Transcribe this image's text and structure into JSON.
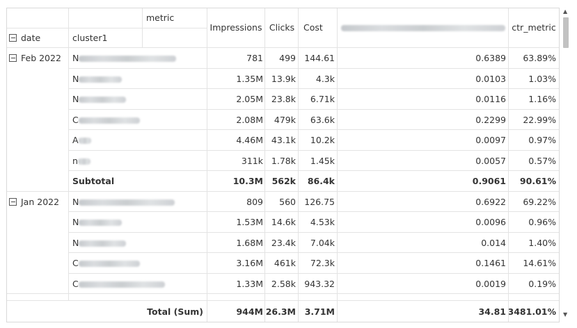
{
  "header": {
    "metric_label": "metric",
    "date_label": "date",
    "cluster_label": "cluster1",
    "columns": [
      "Impressions",
      "Clicks",
      "Cost",
      "",
      "ctr_metric"
    ]
  },
  "groups": [
    {
      "date": "Feb 2022",
      "rows": [
        {
          "cluster": "N",
          "blur": 140,
          "values": [
            "781",
            "499",
            "144.61",
            "0.6389",
            "63.89%"
          ]
        },
        {
          "cluster": "N",
          "blur": 62,
          "values": [
            "1.35M",
            "13.9k",
            "4.3k",
            "0.0103",
            "1.03%"
          ]
        },
        {
          "cluster": "N",
          "blur": 68,
          "values": [
            "2.05M",
            "23.8k",
            "6.71k",
            "0.0116",
            "1.16%"
          ]
        },
        {
          "cluster": "C",
          "blur": 88,
          "values": [
            "2.08M",
            "479k",
            "63.6k",
            "0.2299",
            "22.99%"
          ]
        },
        {
          "cluster": "A",
          "blur": 18,
          "values": [
            "4.46M",
            "43.1k",
            "10.2k",
            "0.0097",
            "0.97%"
          ]
        },
        {
          "cluster": "n",
          "blur": 18,
          "values": [
            "311k",
            "1.78k",
            "1.45k",
            "0.0057",
            "0.57%"
          ]
        }
      ],
      "subtotal_label": "Subtotal",
      "subtotal": [
        "10.3M",
        "562k",
        "86.4k",
        "0.9061",
        "90.61%"
      ]
    },
    {
      "date": "Jan 2022",
      "rows": [
        {
          "cluster": "N",
          "blur": 138,
          "values": [
            "809",
            "560",
            "126.75",
            "0.6922",
            "69.22%"
          ]
        },
        {
          "cluster": "N",
          "blur": 62,
          "values": [
            "1.53M",
            "14.6k",
            "4.53k",
            "0.0096",
            "0.96%"
          ]
        },
        {
          "cluster": "N",
          "blur": 68,
          "values": [
            "1.68M",
            "23.4k",
            "7.04k",
            "0.014",
            "1.40%"
          ]
        },
        {
          "cluster": "C",
          "blur": 88,
          "values": [
            "3.16M",
            "461k",
            "72.3k",
            "0.1461",
            "14.61%"
          ]
        },
        {
          "cluster": "C",
          "blur": 124,
          "values": [
            "1.33M",
            "2.58k",
            "943.32",
            "0.0019",
            "0.19%"
          ]
        }
      ]
    }
  ],
  "total": {
    "label": "Total (Sum)",
    "values": [
      "944M",
      "26.3M",
      "3.71M",
      "34.81",
      "3481.01%"
    ]
  }
}
